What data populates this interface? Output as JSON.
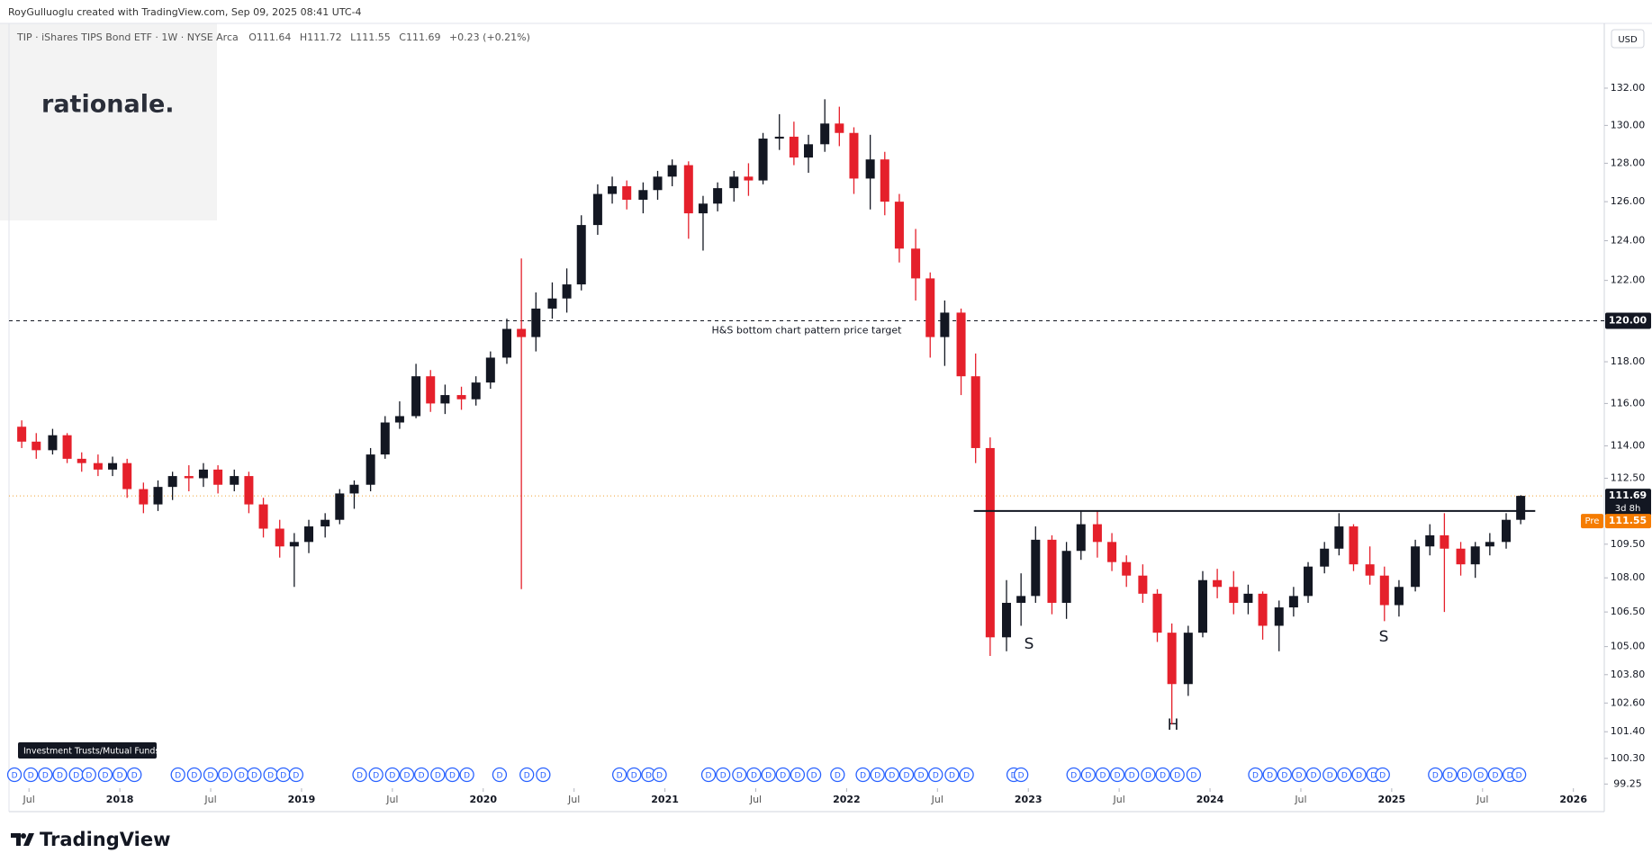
{
  "header": {
    "credit": "RoyGulluoglu created with TradingView.com, Sep 09, 2025 08:41 UTC-4"
  },
  "watermark": "rationale.",
  "footer": "TradingView",
  "chart_data": {
    "type": "candlestick",
    "legend": {
      "symbol": "TIP · iShares TIPS Bond ETF · 1W · NYSE Arca",
      "open": "O111.64",
      "high": "H111.72",
      "low": "L111.55",
      "close": "C111.69",
      "change": "+0.23 (+0.21%)"
    },
    "currency": "USD",
    "x": [
      2017.46,
      2017.54,
      2017.63,
      2017.71,
      2017.79,
      2017.88,
      2017.96,
      2018.04,
      2018.13,
      2018.21,
      2018.29,
      2018.38,
      2018.46,
      2018.54,
      2018.63,
      2018.71,
      2018.79,
      2018.88,
      2018.96,
      2019.04,
      2019.13,
      2019.21,
      2019.29,
      2019.38,
      2019.46,
      2019.54,
      2019.63,
      2019.71,
      2019.79,
      2019.88,
      2019.96,
      2020.04,
      2020.13,
      2020.21,
      2020.29,
      2020.38,
      2020.46,
      2020.54,
      2020.63,
      2020.71,
      2020.79,
      2020.88,
      2020.96,
      2021.04,
      2021.13,
      2021.21,
      2021.29,
      2021.38,
      2021.46,
      2021.54,
      2021.63,
      2021.71,
      2021.79,
      2021.88,
      2021.96,
      2022.04,
      2022.13,
      2022.21,
      2022.29,
      2022.38,
      2022.46,
      2022.54,
      2022.63,
      2022.71,
      2022.79,
      2022.88,
      2022.96,
      2023.04,
      2023.13,
      2023.21,
      2023.29,
      2023.38,
      2023.46,
      2023.54,
      2023.63,
      2023.71,
      2023.79,
      2023.88,
      2023.96,
      2024.04,
      2024.13,
      2024.21,
      2024.29,
      2024.38,
      2024.46,
      2024.54,
      2024.63,
      2024.71,
      2024.79,
      2024.88,
      2024.96,
      2025.04,
      2025.13,
      2025.21,
      2025.29,
      2025.38,
      2025.46,
      2025.54,
      2025.63,
      2025.71
    ],
    "open": [
      114.9,
      114.2,
      113.8,
      114.5,
      113.4,
      113.2,
      112.9,
      113.2,
      112.0,
      111.3,
      112.1,
      112.6,
      112.5,
      112.9,
      112.2,
      112.6,
      111.3,
      110.2,
      109.4,
      109.6,
      110.3,
      110.6,
      111.8,
      112.2,
      113.6,
      115.1,
      115.4,
      117.3,
      116.0,
      116.4,
      116.2,
      117.0,
      118.2,
      119.6,
      119.2,
      120.6,
      121.1,
      121.8,
      124.8,
      126.4,
      126.8,
      126.1,
      126.6,
      127.3,
      127.9,
      125.4,
      125.9,
      126.7,
      127.3,
      127.1,
      129.3,
      129.4,
      128.3,
      129.0,
      130.1,
      129.6,
      127.2,
      128.2,
      126.0,
      123.6,
      122.1,
      119.2,
      120.4,
      117.3,
      113.9,
      105.4,
      106.9,
      107.2,
      109.7,
      106.9,
      109.2,
      110.4,
      109.6,
      108.7,
      108.1,
      107.3,
      105.6,
      103.4,
      105.6,
      107.9,
      107.6,
      106.9,
      107.3,
      105.9,
      106.7,
      107.2,
      108.5,
      109.3,
      110.3,
      108.6,
      108.1,
      106.8,
      107.6,
      109.4,
      109.9,
      109.3,
      108.6,
      109.4,
      109.6,
      110.6
    ],
    "high": [
      115.2,
      114.6,
      114.8,
      114.6,
      113.7,
      113.6,
      113.5,
      113.4,
      112.3,
      112.4,
      112.8,
      113.1,
      113.2,
      113.1,
      112.9,
      112.8,
      111.6,
      110.6,
      110.0,
      110.6,
      110.9,
      112.0,
      112.4,
      113.9,
      115.4,
      116.1,
      117.9,
      117.6,
      116.9,
      116.8,
      117.3,
      118.5,
      120.1,
      123.1,
      121.4,
      121.9,
      122.6,
      125.3,
      126.9,
      127.3,
      127.1,
      127.0,
      127.6,
      128.2,
      128.1,
      126.3,
      127.0,
      127.6,
      128.0,
      129.6,
      130.6,
      130.2,
      129.5,
      131.4,
      131.0,
      129.9,
      129.5,
      128.6,
      126.4,
      124.6,
      122.4,
      121.0,
      120.6,
      118.4,
      114.4,
      107.9,
      108.2,
      110.3,
      109.9,
      109.6,
      111.0,
      111.0,
      110.0,
      109.0,
      108.6,
      107.5,
      106.0,
      105.9,
      108.3,
      108.4,
      108.3,
      107.7,
      107.4,
      107.0,
      107.6,
      108.7,
      109.6,
      110.9,
      110.4,
      109.4,
      108.5,
      107.9,
      109.7,
      110.4,
      110.9,
      109.6,
      109.6,
      110.0,
      110.9,
      111.72
    ],
    "low": [
      113.9,
      113.4,
      113.6,
      113.2,
      112.8,
      112.6,
      112.6,
      111.6,
      110.9,
      111.0,
      111.5,
      111.9,
      112.1,
      111.8,
      111.9,
      110.9,
      109.8,
      108.9,
      107.6,
      109.1,
      109.8,
      110.4,
      111.1,
      111.9,
      113.4,
      114.8,
      115.3,
      115.6,
      115.5,
      115.7,
      115.9,
      116.7,
      117.9,
      107.5,
      118.5,
      120.1,
      120.4,
      121.5,
      124.3,
      125.9,
      125.6,
      125.4,
      126.1,
      126.8,
      124.1,
      123.5,
      125.5,
      126.0,
      126.3,
      126.9,
      128.7,
      127.9,
      127.5,
      128.6,
      128.9,
      126.4,
      125.6,
      125.3,
      122.9,
      121.0,
      118.2,
      117.8,
      116.4,
      113.2,
      104.6,
      104.8,
      105.9,
      106.9,
      106.4,
      106.2,
      108.8,
      108.9,
      108.3,
      107.6,
      106.9,
      105.2,
      101.7,
      102.9,
      105.4,
      107.1,
      106.4,
      106.4,
      105.3,
      104.8,
      106.3,
      106.9,
      108.2,
      109.0,
      108.3,
      107.7,
      106.1,
      106.3,
      107.4,
      109.0,
      106.5,
      108.1,
      108.0,
      109.0,
      109.3,
      110.4
    ],
    "close": [
      114.2,
      113.8,
      114.5,
      113.4,
      113.2,
      112.9,
      113.2,
      112.0,
      111.3,
      112.1,
      112.6,
      112.5,
      112.9,
      112.2,
      112.6,
      111.3,
      110.2,
      109.4,
      109.6,
      110.3,
      110.6,
      111.8,
      112.2,
      113.6,
      115.1,
      115.4,
      117.3,
      116.0,
      116.4,
      116.2,
      117.0,
      118.2,
      119.6,
      119.2,
      120.6,
      121.1,
      121.8,
      124.8,
      126.4,
      126.8,
      126.1,
      126.6,
      127.3,
      127.9,
      125.4,
      125.9,
      126.7,
      127.3,
      127.1,
      129.3,
      129.4,
      128.3,
      129.0,
      130.1,
      129.6,
      127.2,
      128.2,
      126.0,
      123.6,
      122.1,
      119.2,
      120.4,
      117.3,
      113.9,
      105.4,
      106.9,
      107.2,
      109.7,
      106.9,
      109.2,
      110.4,
      109.6,
      108.7,
      108.1,
      107.3,
      105.6,
      103.4,
      105.6,
      107.9,
      107.6,
      106.9,
      107.3,
      105.9,
      106.7,
      107.2,
      108.5,
      109.3,
      110.3,
      108.6,
      108.1,
      106.8,
      107.6,
      109.4,
      109.9,
      109.3,
      108.6,
      109.4,
      109.6,
      110.6,
      111.69
    ],
    "up_color": "#131722",
    "down_color": "#e5202b",
    "log_scale": true,
    "grid": false,
    "xlim": [
      2017.39,
      2026.17
    ],
    "ylim": [
      99.08,
      135.4
    ],
    "xticks": [
      {
        "value": 2017.5,
        "label": "Jul"
      },
      2018,
      {
        "value": 2018.5,
        "label": "Jul"
      },
      2019,
      {
        "value": 2019.5,
        "label": "Jul"
      },
      2020,
      {
        "value": 2020.5,
        "label": "Jul"
      },
      2021,
      {
        "value": 2021.5,
        "label": "Jul"
      },
      2022,
      {
        "value": 2022.5,
        "label": "Jul"
      },
      2023,
      {
        "value": 2023.5,
        "label": "Jul"
      },
      2024,
      {
        "value": 2024.5,
        "label": "Jul"
      },
      2025,
      {
        "value": 2025.5,
        "label": "Jul"
      },
      2026
    ],
    "yticks": [
      {
        "value": 132,
        "label": "132.00"
      },
      {
        "value": 130,
        "label": "130.00"
      },
      {
        "value": 128,
        "label": "128.00"
      },
      {
        "value": 126,
        "label": "126.00"
      },
      {
        "value": 124,
        "label": "124.00"
      },
      {
        "value": 122,
        "label": "122.00"
      },
      {
        "value": 118,
        "label": "118.00"
      },
      {
        "value": 116,
        "label": "116.00"
      },
      {
        "value": 114,
        "label": "114.00"
      },
      {
        "value": 112.5,
        "label": "112.50"
      },
      {
        "value": 109.5,
        "label": "109.50"
      },
      {
        "value": 108,
        "label": "108.00"
      },
      {
        "value": 106.5,
        "label": "106.50"
      },
      {
        "value": 105,
        "label": "105.00"
      },
      {
        "value": 103.8,
        "label": "103.80"
      },
      {
        "value": 102.6,
        "label": "102.60"
      },
      {
        "value": 101.4,
        "label": "101.40"
      },
      {
        "value": 100.3,
        "label": "100.30"
      },
      99.25
    ],
    "target": {
      "value": 120,
      "label": "120.00",
      "text": "H&S bottom chart pattern price target"
    },
    "neckline": {
      "value": 111.0,
      "x": [
        2022.7,
        2025.79
      ]
    },
    "pattern_labels": [
      "S",
      "H",
      "S"
    ],
    "last_price": 111.69,
    "countdown": "3d 8h",
    "premarket": {
      "label": "Pre",
      "value": 111.55
    },
    "dividends": {
      "label": "D",
      "category": "Investment Trusts/Mutual Funds",
      "x": [
        2017.42,
        2017.51,
        2017.59,
        2017.67,
        2017.76,
        2017.83,
        2017.92,
        2018.0,
        2018.08,
        2018.32,
        2018.41,
        2018.5,
        2018.58,
        2018.67,
        2018.74,
        2018.83,
        2018.9,
        2018.97,
        2019.32,
        2019.41,
        2019.5,
        2019.58,
        2019.66,
        2019.75,
        2019.83,
        2019.91,
        2020.09,
        2020.24,
        2020.33,
        2020.75,
        2020.83,
        2020.91,
        2020.97,
        2021.24,
        2021.32,
        2021.41,
        2021.49,
        2021.57,
        2021.65,
        2021.73,
        2021.82,
        2021.95,
        2022.09,
        2022.17,
        2022.25,
        2022.33,
        2022.41,
        2022.49,
        2022.58,
        2022.66,
        2022.92,
        2022.96,
        2023.25,
        2023.33,
        2023.41,
        2023.49,
        2023.57,
        2023.66,
        2023.74,
        2023.82,
        2023.91,
        2024.25,
        2024.33,
        2024.41,
        2024.49,
        2024.57,
        2024.66,
        2024.74,
        2024.82,
        2024.9,
        2024.95,
        2025.24,
        2025.32,
        2025.4,
        2025.49,
        2025.57,
        2025.65,
        2025.7
      ]
    }
  }
}
